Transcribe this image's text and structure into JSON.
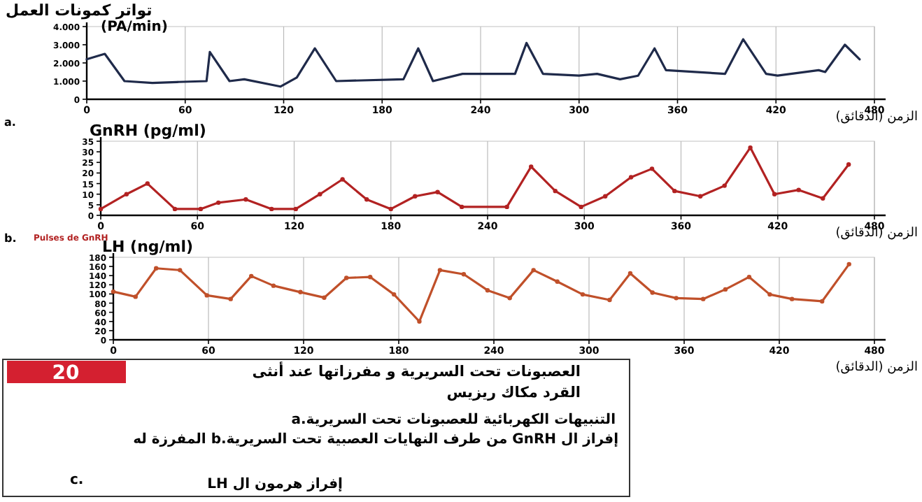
{
  "chart_data": [
    {
      "type": "line",
      "title": "تواتر كمونات العمل",
      "ylabel": "(PA/min)",
      "xlabel": "الزمن (الدقائق)",
      "annotations": [
        "a."
      ],
      "grid": "x",
      "marker": "none",
      "line_style": "solid",
      "xlim": [
        0,
        480
      ],
      "xticks": [
        0,
        60,
        120,
        180,
        240,
        300,
        360,
        420,
        480
      ],
      "ylim": [
        0,
        4000
      ],
      "yticks": [
        0,
        {
          "value": 1000,
          "label": "1.000"
        },
        {
          "value": 2000,
          "label": "2.000"
        },
        {
          "value": 3000,
          "label": "3.000"
        },
        {
          "value": 4000,
          "label": "4.000"
        }
      ],
      "series": [
        {
          "color": "#1f2a4a",
          "x": [
            0,
            11,
            23,
            40,
            55,
            73,
            75,
            87,
            96,
            118,
            128,
            139,
            152,
            193,
            202,
            211,
            229,
            261,
            268,
            278,
            300,
            311,
            325,
            336,
            346,
            353,
            389,
            400,
            414,
            421,
            446,
            450,
            462,
            471
          ],
          "values": [
            2200,
            2500,
            1000,
            900,
            950,
            1000,
            2600,
            1000,
            1100,
            700,
            1200,
            2800,
            1000,
            1100,
            2800,
            1000,
            1400,
            1400,
            3100,
            1400,
            1300,
            1400,
            1100,
            1300,
            2800,
            1600,
            1400,
            3300,
            1400,
            1300,
            1600,
            1500,
            3000,
            2200
          ]
        }
      ]
    },
    {
      "type": "line",
      "title": "GnRH (pg/ml)",
      "xlabel": "الزمن (الدقائق)",
      "annotations": [
        "b.",
        "Pulses de GnRH"
      ],
      "grid": "x",
      "marker": "circle",
      "line_style": "solid",
      "xlim": [
        0,
        480
      ],
      "xticks": [
        0,
        60,
        120,
        180,
        240,
        300,
        360,
        420,
        480
      ],
      "ylim": [
        0,
        35
      ],
      "yticks": [
        0,
        5,
        10,
        15,
        20,
        25,
        30,
        35
      ],
      "series": [
        {
          "color": "#b22222",
          "x": [
            0,
            16,
            29,
            46,
            62,
            73,
            90,
            106,
            121,
            136,
            150,
            165,
            180,
            195,
            209,
            224,
            252,
            267,
            282,
            298,
            313,
            329,
            342,
            356,
            372,
            387,
            403,
            418,
            433,
            448,
            464
          ],
          "values": [
            3,
            10,
            15,
            3,
            3,
            6,
            7.5,
            3,
            3,
            10,
            17,
            7.5,
            3,
            9,
            11,
            4,
            4,
            23,
            11.5,
            4,
            9,
            18,
            22,
            11.5,
            9,
            14,
            32,
            10,
            12,
            8,
            24
          ]
        }
      ]
    },
    {
      "type": "line",
      "title": "LH (ng/ml)",
      "xlabel": "الزمن (الدقائق)",
      "grid": "x",
      "marker": "circle",
      "line_style": "solid",
      "xlim": [
        0,
        480
      ],
      "xticks": [
        0,
        60,
        120,
        180,
        240,
        300,
        360,
        420,
        480
      ],
      "ylim": [
        0,
        180
      ],
      "yticks": [
        0,
        20,
        40,
        60,
        80,
        100,
        120,
        140,
        160,
        180
      ],
      "annotations": [
        "20",
        "العصبونات تحت السريرية و مفرزاتها عند أنثى القرد مكاك ريزيس",
        "التنبيهات الكهربائية للعصبونات تحت السريرية.a",
        "إفراز ال GnRH من طرف النهايات العصبية تحت السريرية.b المفرزة له",
        "إفراز هرمون ال LH",
        "c."
      ],
      "series": [
        {
          "color": "#c0502a",
          "x": [
            0,
            14,
            27,
            42,
            59,
            74,
            87,
            101,
            118,
            133,
            147,
            162,
            177,
            193,
            206,
            221,
            236,
            250,
            265,
            280,
            296,
            313,
            326,
            340,
            355,
            372,
            386,
            401,
            414,
            428,
            447,
            464
          ],
          "values": [
            105,
            94,
            156,
            152,
            97,
            89,
            139,
            118,
            104,
            92,
            135,
            137,
            99,
            40,
            152,
            143,
            108,
            91,
            152,
            127,
            99,
            87,
            145,
            103,
            91,
            89,
            110,
            137,
            99,
            89,
            84,
            165
          ]
        }
      ]
    }
  ]
}
